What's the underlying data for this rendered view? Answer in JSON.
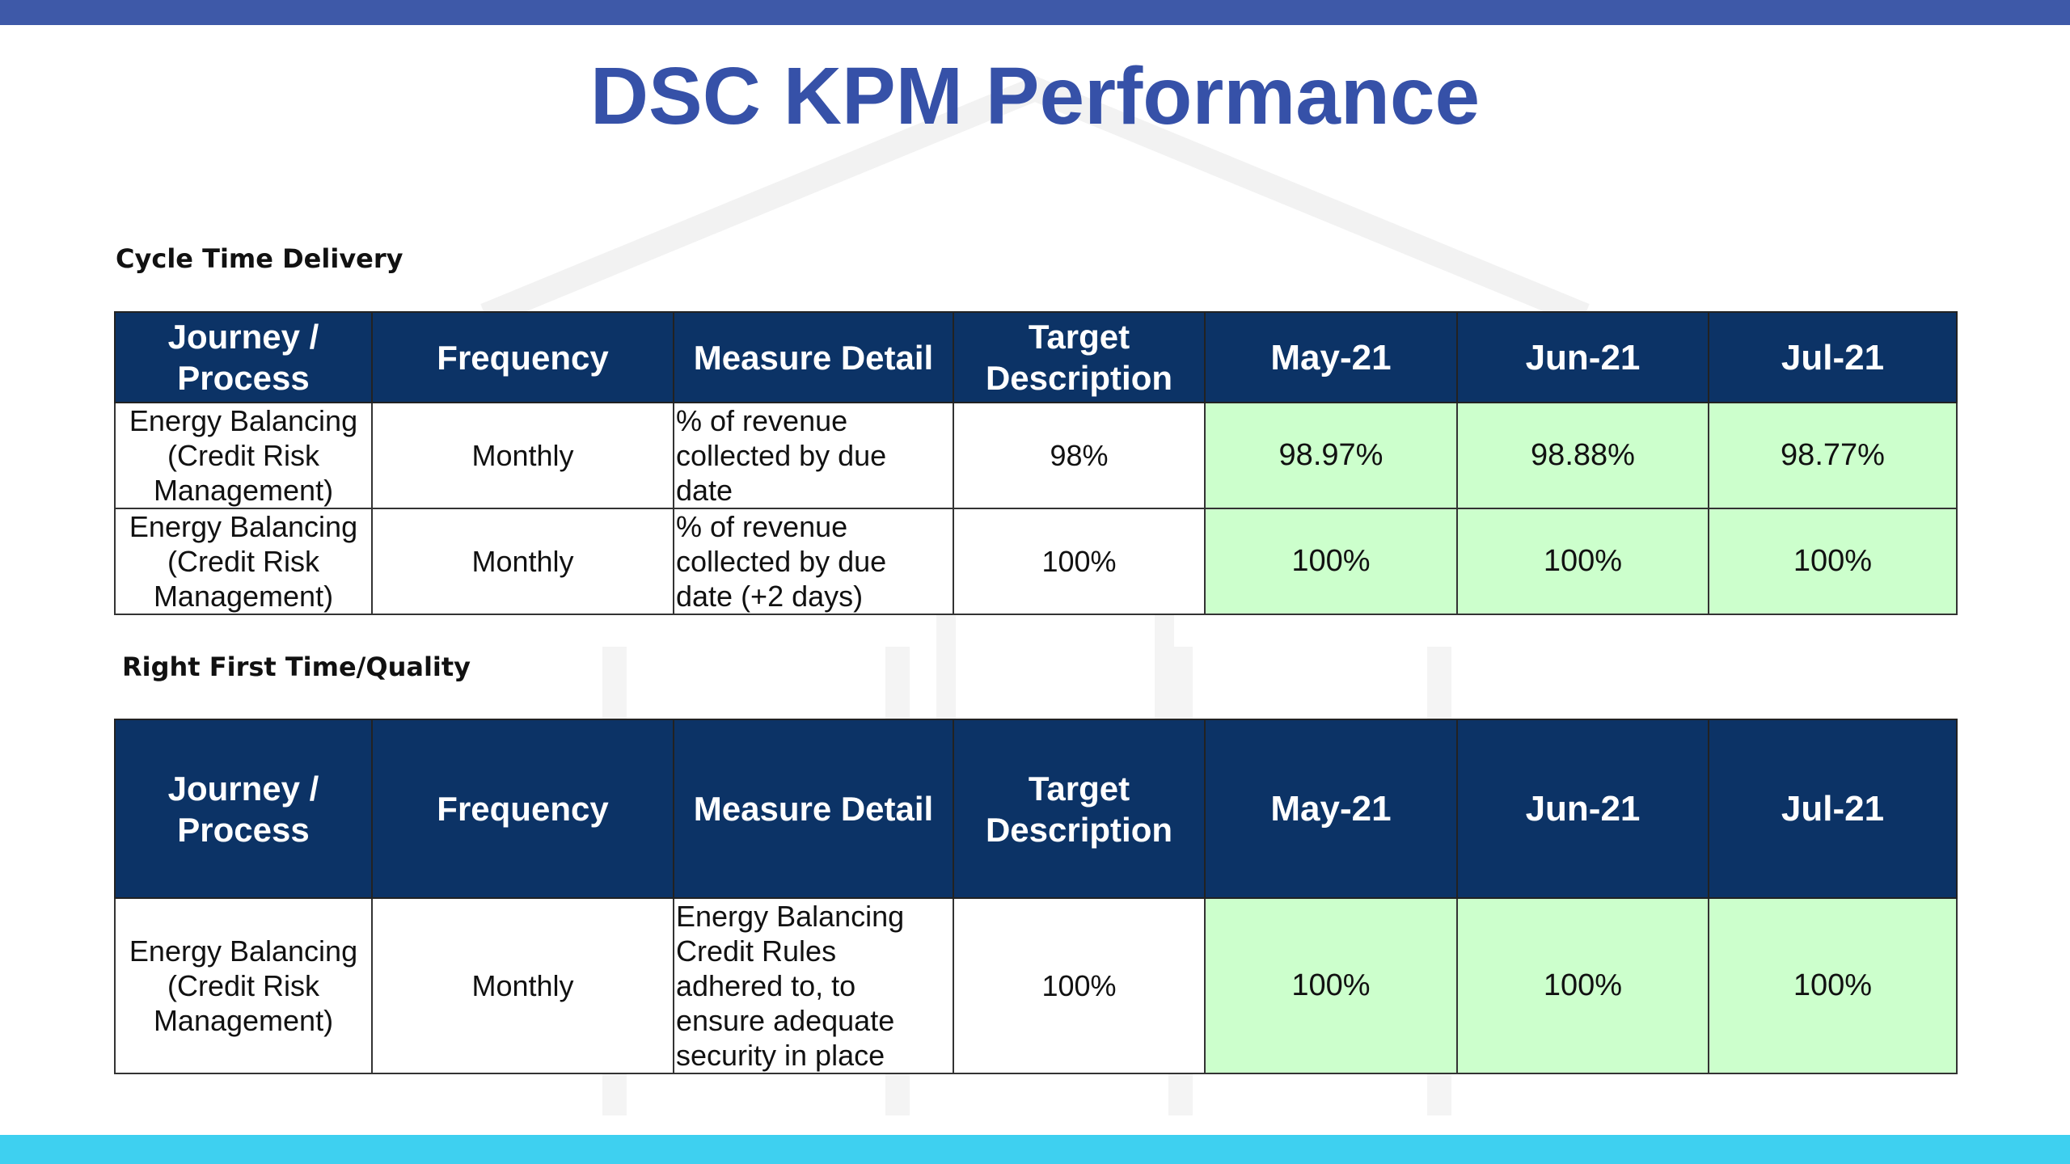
{
  "title": "DSC KPM Performance",
  "colors": {
    "top_bar": "#3e59a8",
    "bottom_bar": "#3ed0f0",
    "title": "#3651a8",
    "header_bg": "#0c3366",
    "value_bg": "#ccffcc"
  },
  "headers": {
    "journey": "Journey / Process",
    "frequency": "Frequency",
    "measure": "Measure Detail",
    "target": "Target Description",
    "m1": "May-21",
    "m2": "Jun-21",
    "m3": "Jul-21"
  },
  "cycle_time": {
    "label": "Cycle Time Delivery",
    "rows": [
      {
        "journey": "Energy Balancing (Credit Risk Management)",
        "frequency": "Monthly",
        "measure": "% of revenue collected by due date",
        "target": "98%",
        "m1": "98.97%",
        "m2": "98.88%",
        "m3": "98.77%"
      },
      {
        "journey": "Energy Balancing (Credit Risk Management)",
        "frequency": "Monthly",
        "measure": "% of revenue collected by due date (+2 days)",
        "target": "100%",
        "m1": "100%",
        "m2": "100%",
        "m3": "100%"
      }
    ]
  },
  "right_first_time": {
    "label": "Right First Time/Quality",
    "rows": [
      {
        "journey": "Energy Balancing (Credit Risk Management)",
        "frequency": "Monthly",
        "measure": "Energy Balancing Credit Rules adhered to, to ensure adequate security in place",
        "target": "100%",
        "m1": "100%",
        "m2": "100%",
        "m3": "100%"
      }
    ]
  }
}
